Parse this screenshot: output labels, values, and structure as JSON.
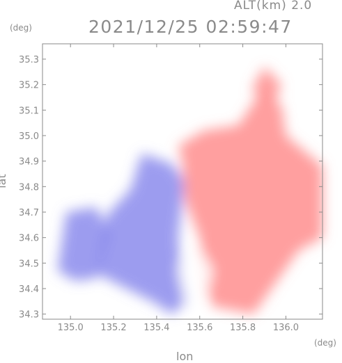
{
  "header": {
    "altitude_label": "ALT(km) 2.0",
    "timestamp": "2021/12/25 02:59:47"
  },
  "chart_data": {
    "type": "heatmap",
    "title": "2021/12/25 02:59:47",
    "subtitle": "ALT(km) 2.0",
    "xlabel": "lon",
    "ylabel": "lat",
    "x_unit": "(deg)",
    "y_unit": "(deg)",
    "xlim": [
      134.87,
      136.17
    ],
    "ylim": [
      34.28,
      35.36
    ],
    "xticks": [
      "135.0",
      "135.2",
      "135.4",
      "135.6",
      "135.8",
      "136.0"
    ],
    "yticks": [
      "34.3",
      "34.4",
      "34.5",
      "34.6",
      "34.7",
      "34.8",
      "34.9",
      "35.0",
      "35.1",
      "35.2",
      "35.3"
    ],
    "grid": false,
    "colors": {
      "negative": "#7b7bea",
      "neutral": "#ffffff",
      "positive": "#ff7f7f",
      "axis": "#8a8a8a"
    },
    "regions": [
      {
        "sign": "negative",
        "polygon": [
          [
            135.12,
            34.46
          ],
          [
            135.17,
            34.69
          ],
          [
            135.28,
            34.79
          ],
          [
            135.33,
            34.93
          ],
          [
            135.47,
            34.89
          ],
          [
            135.53,
            34.82
          ],
          [
            135.5,
            34.6
          ],
          [
            135.52,
            34.43
          ],
          [
            135.55,
            34.35
          ],
          [
            135.47,
            34.3
          ],
          [
            135.38,
            34.35
          ],
          [
            135.26,
            34.4
          ]
        ]
      },
      {
        "sign": "negative",
        "polygon": [
          [
            134.94,
            34.47
          ],
          [
            134.98,
            34.7
          ],
          [
            135.12,
            34.72
          ],
          [
            135.18,
            34.62
          ],
          [
            135.12,
            34.44
          ],
          [
            135.02,
            34.43
          ]
        ]
      },
      {
        "sign": "positive",
        "polygon": [
          [
            135.5,
            34.96
          ],
          [
            135.62,
            35.02
          ],
          [
            135.78,
            35.04
          ],
          [
            135.88,
            35.17
          ],
          [
            135.98,
            35.12
          ],
          [
            136.0,
            35.0
          ],
          [
            136.1,
            34.93
          ],
          [
            136.17,
            34.88
          ],
          [
            136.17,
            34.6
          ],
          [
            136.06,
            34.55
          ],
          [
            135.95,
            34.42
          ],
          [
            135.85,
            34.3
          ],
          [
            135.66,
            34.33
          ],
          [
            135.6,
            34.45
          ],
          [
            135.6,
            34.6
          ],
          [
            135.53,
            34.75
          ],
          [
            135.52,
            34.9
          ]
        ]
      },
      {
        "sign": "positive",
        "polygon": [
          [
            135.84,
            35.18
          ],
          [
            135.9,
            35.27
          ],
          [
            135.98,
            35.2
          ],
          [
            135.94,
            35.12
          ]
        ]
      },
      {
        "sign": "neutral",
        "polygon": [
          [
            135.5,
            34.48
          ],
          [
            135.58,
            34.58
          ],
          [
            135.66,
            34.47
          ],
          [
            135.62,
            34.35
          ],
          [
            135.54,
            34.32
          ]
        ]
      }
    ]
  }
}
